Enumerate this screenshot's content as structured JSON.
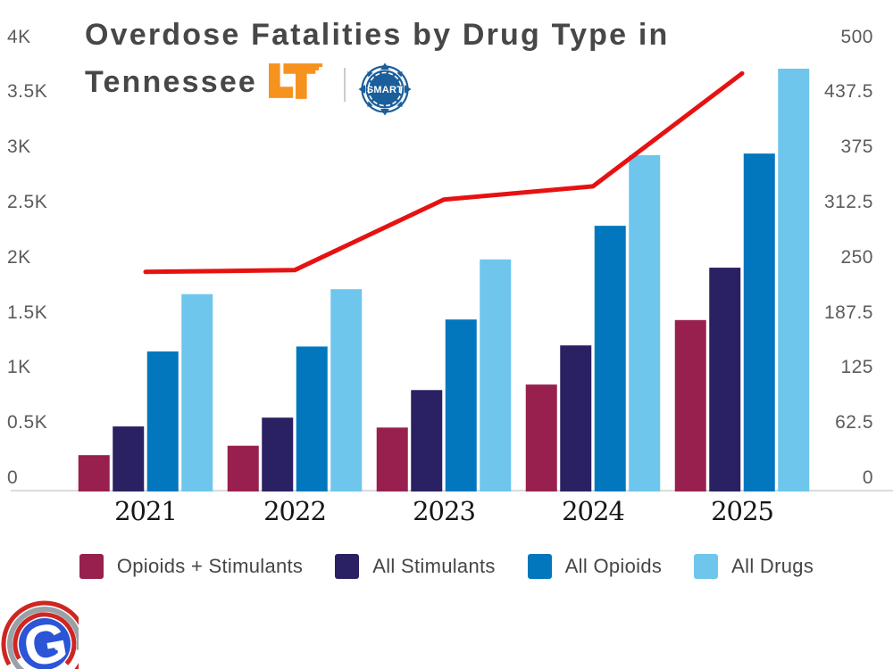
{
  "page": {
    "background": "#ffffff",
    "axis_line_color": "#DBDBDB"
  },
  "header": {
    "title_line1": "Overdose Fatalities by Drug Type in",
    "title_line2": "Tennessee",
    "title_color": "#474747",
    "ut_logo": {
      "color": "#F6921E"
    },
    "smart_badge": {
      "label": "SMART",
      "color": "#1A5E9B",
      "text_color": "#FFFFFF"
    },
    "divider_color": "#CCCCCC"
  },
  "watermark": {
    "letter": "G",
    "g_color": "#2B55D6",
    "arc_red": "#CE2621",
    "arc_gray": "#9AA0A6"
  },
  "chart_data": {
    "type": "bar",
    "title": "Overdose Fatalities by Drug Type in Tennessee",
    "categories": [
      "2021",
      "2022",
      "2023",
      "2024",
      "2025"
    ],
    "series": [
      {
        "name": "Opioids + Stimulants",
        "color": "#97204E",
        "axis": "left",
        "values": [
          330,
          415,
          580,
          970,
          1555
        ]
      },
      {
        "name": "All Stimulants",
        "color": "#2A2163",
        "axis": "left",
        "values": [
          590,
          670,
          920,
          1325,
          2030
        ]
      },
      {
        "name": "All Opioids",
        "color": "#0377BE",
        "axis": "left",
        "values": [
          1270,
          1315,
          1560,
          2410,
          3065
        ]
      },
      {
        "name": "All Drugs",
        "color": "#6EC6EC",
        "axis": "left",
        "values": [
          1790,
          1835,
          2105,
          3050,
          3835
        ]
      }
    ],
    "line_series": [
      {
        "color": "#E61212",
        "axis": "right",
        "stroke_width": 5,
        "values": [
          249,
          251,
          331,
          346,
          474
        ]
      }
    ],
    "axes": {
      "left": {
        "min": 0,
        "max": 4000,
        "tick_labels": [
          "0",
          "0.5K",
          "1K",
          "1.5K",
          "2K",
          "2.5K",
          "3K",
          "3.5K",
          "4K"
        ]
      },
      "right": {
        "min": 0,
        "max": 500,
        "tick_labels": [
          "0",
          "62.5",
          "125",
          "187.5",
          "250",
          "312.5",
          "375",
          "437.5",
          "500"
        ]
      }
    },
    "grid": false,
    "legend_position": "bottom"
  }
}
